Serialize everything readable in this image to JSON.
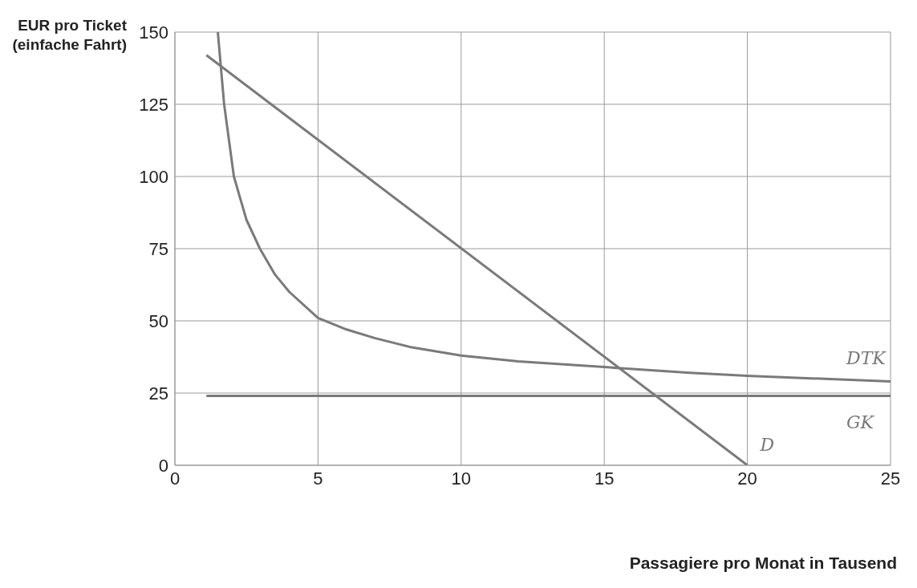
{
  "chart_data": {
    "type": "line",
    "xlabel": "Passagiere pro Monat in Tausend",
    "ylabel": "EUR pro Ticket (einfache Fahrt)",
    "xlim": [
      0,
      25
    ],
    "xticks": [
      0,
      5,
      10,
      15,
      20,
      25
    ],
    "ylim": [
      0,
      150
    ],
    "yticks": [
      0,
      25,
      50,
      75,
      100,
      125,
      150
    ],
    "grid": true,
    "marker": "none",
    "line_style": "solid",
    "series": [
      {
        "name": "DTK",
        "color": "#7a7a7a",
        "x": [
          1.5,
          1.72,
          2.06,
          2.5,
          2.97,
          3.5,
          4,
          5,
          6,
          7,
          8.2,
          10,
          12,
          15,
          18,
          20,
          25
        ],
        "values": [
          150,
          125,
          100,
          85,
          75,
          66,
          60,
          51,
          47,
          44,
          41,
          38,
          36,
          34,
          32,
          31,
          29
        ]
      },
      {
        "name": "GK",
        "color": "#7a7a7a",
        "x": [
          1.1,
          25
        ],
        "values": [
          24,
          24
        ]
      },
      {
        "name": "D",
        "color": "#7a7a7a",
        "x": [
          1.1,
          20
        ],
        "values": [
          142,
          0
        ]
      }
    ]
  }
}
